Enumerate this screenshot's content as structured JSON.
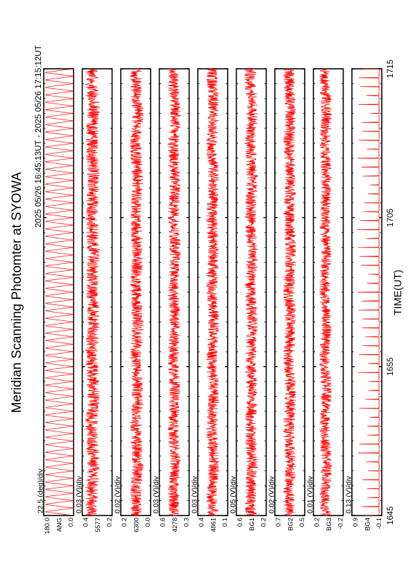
{
  "chart_data": {
    "type": "line",
    "title": "Meridian Scanning Photomter at SYOWA",
    "time_range_label": "2025 05/26 16:45:13UT - 2025 05/26 17:15:12UT",
    "xlabel": "TIME(UT)",
    "x_ticks": [
      "1645",
      "1655",
      "1705",
      "1715"
    ],
    "x_range_minutes": [
      0,
      30
    ],
    "line_color": "#ff0000",
    "panels": [
      {
        "name": "ANG",
        "scale": "22.5 (deg)/div",
        "ticks": [
          "180.0",
          "0.0"
        ],
        "ylim": [
          0,
          180
        ],
        "pattern": "scan",
        "center": 90,
        "amp": 90
      },
      {
        "name": "5577",
        "scale": "0.03 (V)/div",
        "ticks": [
          "0.4",
          "0.2"
        ],
        "ylim": [
          0.14,
          0.46
        ],
        "pattern": "noise",
        "center": 0.35,
        "amp": 0.07
      },
      {
        "name": "6300",
        "scale": "0.02 (V)/div",
        "ticks": [
          "0.2",
          "0.0"
        ],
        "ylim": [
          -0.03,
          0.27
        ],
        "pattern": "noise",
        "center": 0.11,
        "amp": 0.06
      },
      {
        "name": "4278",
        "scale": "0.03 (V)/div",
        "ticks": [
          "0.6",
          "0.3"
        ],
        "ylim": [
          0.24,
          0.66
        ],
        "pattern": "noise",
        "center": 0.45,
        "amp": 0.08
      },
      {
        "name": "4861",
        "scale": "0.03 (V)/div",
        "ticks": [
          "0.4",
          "0.1"
        ],
        "ylim": [
          0.04,
          0.46
        ],
        "pattern": "noise",
        "center": 0.25,
        "amp": 0.08
      },
      {
        "name": "BG1",
        "scale": "0.05 (V)/div",
        "ticks": [
          "0.6",
          "0.2"
        ],
        "ylim": [
          0.12,
          0.68
        ],
        "pattern": "noise",
        "center": 0.4,
        "amp": 0.11
      },
      {
        "name": "BG2",
        "scale": "0.02 (V)/div",
        "ticks": [
          "0.7",
          "0.5"
        ],
        "ylim": [
          0.47,
          0.73
        ],
        "pattern": "noise",
        "center": 0.6,
        "amp": 0.05
      },
      {
        "name": "BG3",
        "scale": "0.01 (V)/div",
        "ticks": [
          "0.2",
          "-0.2"
        ],
        "ylim": [
          -0.27,
          0.27
        ],
        "pattern": "noise",
        "center": 0.05,
        "amp": 0.1
      },
      {
        "name": "BG4",
        "scale": "0.13 (V)/div",
        "ticks": [
          "0.9",
          "-0.1"
        ],
        "ylim": [
          -0.15,
          0.95
        ],
        "pattern": "spikes",
        "center": -0.05,
        "amp": 0.8
      }
    ]
  }
}
